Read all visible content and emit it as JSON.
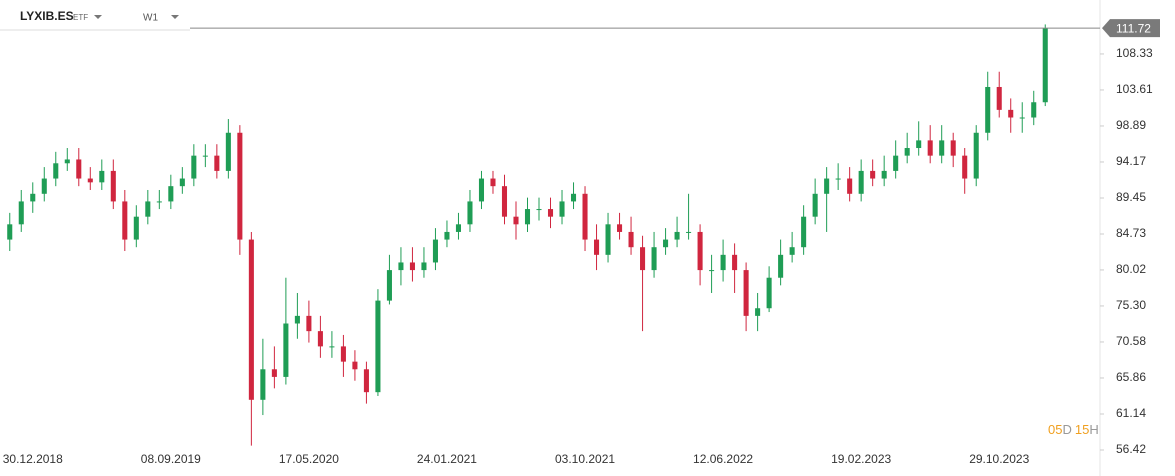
{
  "header": {
    "symbol": "LYXIB.ES",
    "asset_type": "ETF",
    "timeframe": "W1"
  },
  "countdown": {
    "days": "05",
    "days_unit": "D",
    "hours": "15",
    "hours_unit": "H"
  },
  "chart_data": {
    "type": "candlestick",
    "up_color": "#1f9d55",
    "down_color": "#d0263f",
    "last_price": 111.72,
    "ylim": [
      56.42,
      114.09
    ],
    "yticks": [
      56.42,
      61.14,
      65.86,
      70.58,
      {
        "value": 75.3,
        "label": "75.30"
      },
      80.02,
      84.73,
      89.45,
      94.17,
      98.89,
      103.61,
      108.33
    ],
    "categories": [
      null,
      null,
      "30.12.2018",
      null,
      null,
      null,
      null,
      null,
      null,
      null,
      null,
      null,
      null,
      null,
      "08.09.2019",
      null,
      null,
      null,
      null,
      null,
      null,
      null,
      null,
      null,
      null,
      null,
      "17.05.2020",
      null,
      null,
      null,
      null,
      null,
      null,
      null,
      null,
      null,
      null,
      null,
      "24.01.2021",
      null,
      null,
      null,
      null,
      null,
      null,
      null,
      null,
      null,
      null,
      null,
      "03.10.2021",
      null,
      null,
      null,
      null,
      null,
      null,
      null,
      null,
      null,
      null,
      null,
      "12.06.2022",
      null,
      null,
      null,
      null,
      null,
      null,
      null,
      null,
      null,
      null,
      null,
      "19.02.2023",
      null,
      null,
      null,
      null,
      null,
      null,
      null,
      null,
      null,
      null,
      null,
      "29.10.2023",
      null,
      null,
      null,
      null
    ],
    "open": [
      84,
      86,
      89,
      90,
      92,
      94,
      94.5,
      92,
      91.5,
      93,
      89,
      84,
      87,
      89,
      89,
      91,
      92,
      95,
      95,
      93,
      98,
      84,
      63,
      67,
      66,
      73,
      74,
      72,
      70,
      70,
      68,
      67,
      64,
      76,
      80,
      81,
      80,
      81,
      84,
      85,
      86,
      89,
      92,
      91,
      87,
      86,
      88,
      88,
      87,
      89,
      90,
      84,
      82,
      86,
      85,
      83,
      80,
      83,
      84,
      85,
      85,
      80,
      80,
      82,
      80,
      74,
      75,
      79,
      82,
      83,
      87,
      90,
      92,
      92,
      90,
      93,
      92,
      93,
      95,
      96,
      97,
      95,
      97,
      95,
      92,
      98,
      104,
      101,
      100,
      100,
      102
    ],
    "high": [
      87.5,
      90.5,
      91.5,
      93.5,
      95.5,
      96,
      96,
      93.5,
      94.5,
      94.5,
      90.5,
      88.5,
      90.5,
      90.5,
      92.5,
      93.5,
      96.5,
      96.5,
      96.5,
      99.8,
      99,
      85,
      71,
      70,
      79,
      77,
      76,
      74,
      72,
      71.5,
      69.5,
      68,
      77.5,
      82,
      83,
      83,
      83,
      85.5,
      86.5,
      87.5,
      90.5,
      93,
      93,
      92.5,
      89,
      89.5,
      89.5,
      89.5,
      90.5,
      91.5,
      91,
      86,
      87.5,
      87.5,
      87,
      84.5,
      85,
      85.5,
      87,
      90,
      86,
      82,
      84,
      83.5,
      81,
      77,
      80.5,
      84,
      85,
      88.5,
      92,
      93.5,
      94,
      93.5,
      94.5,
      94.5,
      95,
      97,
      98,
      99.5,
      99,
      99,
      98,
      96,
      99,
      106,
      106,
      102.5,
      102,
      103.5,
      112.2
    ],
    "low": [
      82.5,
      85,
      87.5,
      89,
      91,
      93,
      91,
      90.5,
      90.5,
      88,
      82.5,
      83,
      86,
      88,
      88,
      90,
      91,
      93.5,
      92,
      92,
      82,
      57,
      61,
      64.5,
      65,
      71,
      70.5,
      68.5,
      68.5,
      66,
      65.5,
      62.5,
      63.5,
      75.5,
      78,
      78.5,
      79,
      80,
      83,
      84,
      85,
      88,
      90,
      86,
      84,
      85,
      86.5,
      85.5,
      86,
      88,
      82.5,
      80,
      81,
      84,
      82,
      72,
      79,
      82,
      83,
      84,
      78,
      77,
      78.5,
      77,
      72,
      72,
      74.5,
      78,
      81,
      82,
      86,
      85,
      90.5,
      89,
      89,
      91,
      91,
      92,
      94,
      95,
      94,
      94,
      93.5,
      90,
      91,
      97,
      100,
      98,
      98,
      99,
      101.5
    ],
    "close": [
      86,
      89,
      90,
      92,
      94,
      94.5,
      92,
      91.5,
      93,
      89,
      84,
      87,
      89,
      89,
      91,
      92,
      95,
      95,
      93,
      98,
      84,
      63,
      67,
      66,
      73,
      74,
      72,
      70,
      70,
      68,
      67,
      64,
      76,
      80,
      81,
      80,
      81,
      84,
      85,
      86,
      89,
      92,
      91,
      87,
      86,
      88,
      88,
      87,
      89,
      90,
      84,
      82,
      86,
      85,
      83,
      80,
      83,
      84,
      85,
      85,
      80,
      80,
      82,
      80,
      74,
      75,
      79,
      82,
      83,
      87,
      90,
      92,
      92,
      90,
      93,
      92,
      93,
      95,
      96,
      97,
      95,
      97,
      95,
      92,
      98,
      104,
      101,
      100,
      100,
      102,
      111.72
    ]
  }
}
